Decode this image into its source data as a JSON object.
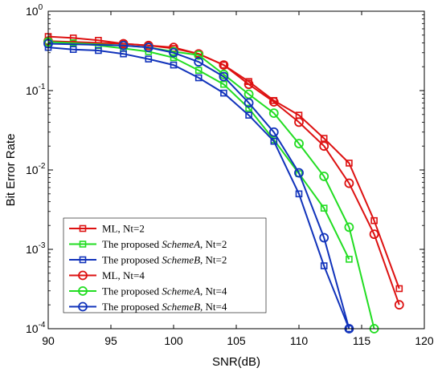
{
  "chart_data": {
    "type": "line",
    "title": "",
    "xlabel": "SNR(dB)",
    "ylabel": "Bit Error Rate",
    "xlim": [
      90,
      120
    ],
    "ylim": [
      0.0001,
      1
    ],
    "y_scale": "log",
    "x_ticks": [
      "90",
      "95",
      "100",
      "105",
      "110",
      "115",
      "120"
    ],
    "y_ticks": [
      {
        "base": "10",
        "exp": "0"
      },
      {
        "base": "10",
        "exp": "-1"
      },
      {
        "base": "10",
        "exp": "-2"
      },
      {
        "base": "10",
        "exp": "-3"
      },
      {
        "base": "10",
        "exp": "-4"
      }
    ],
    "grid": false,
    "legend_position": "bottom-left",
    "series": [
      {
        "name": "ML, Nt=2",
        "legend": {
          "prefix": "ML, Nt=2",
          "scheme": "",
          "suffix": ""
        },
        "color": "#dd1111",
        "marker": "square",
        "x": [
          90,
          92,
          94,
          96,
          98,
          100,
          102,
          104,
          106,
          108,
          110,
          112,
          114,
          116,
          118
        ],
        "y": [
          0.48,
          0.46,
          0.43,
          0.39,
          0.37,
          0.34,
          0.29,
          0.21,
          0.13,
          0.075,
          0.049,
          0.025,
          0.0122,
          0.0023,
          0.00032
        ]
      },
      {
        "name": "The proposed SchemeA, Nt=2",
        "legend": {
          "prefix": "The proposed ",
          "scheme": "SchemeA",
          "suffix": ", Nt=2"
        },
        "color": "#22dd22",
        "marker": "square",
        "x": [
          90,
          92,
          94,
          96,
          98,
          100,
          102,
          104,
          106,
          108,
          110,
          112,
          114
        ],
        "y": [
          0.42,
          0.4,
          0.37,
          0.34,
          0.31,
          0.26,
          0.18,
          0.12,
          0.06,
          0.024,
          0.009,
          0.0033,
          0.00075
        ]
      },
      {
        "name": "The proposed SchemeB, Nt=2",
        "legend": {
          "prefix": "The proposed ",
          "scheme": "SchemeB",
          "suffix": ", Nt=2"
        },
        "color": "#1133bb",
        "marker": "square",
        "x": [
          90,
          92,
          94,
          96,
          98,
          100,
          102,
          104,
          106,
          108,
          110,
          112,
          114
        ],
        "y": [
          0.35,
          0.33,
          0.32,
          0.29,
          0.25,
          0.21,
          0.145,
          0.093,
          0.049,
          0.023,
          0.005,
          0.00062,
          0.0001
        ]
      },
      {
        "name": "ML, Nt=4",
        "legend": {
          "prefix": "ML, Nt=4",
          "scheme": "",
          "suffix": ""
        },
        "color": "#dd1111",
        "marker": "circle",
        "x": [
          90,
          96,
          98,
          100,
          102,
          104,
          106,
          108,
          110,
          112,
          114,
          116,
          118
        ],
        "y": [
          0.42,
          0.39,
          0.37,
          0.35,
          0.29,
          0.21,
          0.12,
          0.072,
          0.04,
          0.02,
          0.0068,
          0.00155,
          0.0002
        ]
      },
      {
        "name": "The proposed SchemeA, Nt=4",
        "legend": {
          "prefix": "The proposed ",
          "scheme": "SchemeA",
          "suffix": ", Nt=4"
        },
        "color": "#22dd22",
        "marker": "circle",
        "x": [
          90,
          96,
          98,
          100,
          102,
          104,
          106,
          108,
          110,
          112,
          114,
          116
        ],
        "y": [
          0.41,
          0.37,
          0.35,
          0.31,
          0.28,
          0.16,
          0.09,
          0.052,
          0.0215,
          0.0083,
          0.0019,
          0.0001
        ]
      },
      {
        "name": "The proposed SchemeB, Nt=4",
        "legend": {
          "prefix": "The proposed ",
          "scheme": "SchemeB",
          "suffix": ", Nt=4"
        },
        "color": "#1133bb",
        "marker": "circle",
        "x": [
          90,
          96,
          98,
          100,
          102,
          104,
          106,
          108,
          110,
          112,
          114
        ],
        "y": [
          0.39,
          0.37,
          0.35,
          0.3,
          0.23,
          0.15,
          0.07,
          0.03,
          0.0092,
          0.0014,
          0.0001
        ]
      }
    ]
  }
}
